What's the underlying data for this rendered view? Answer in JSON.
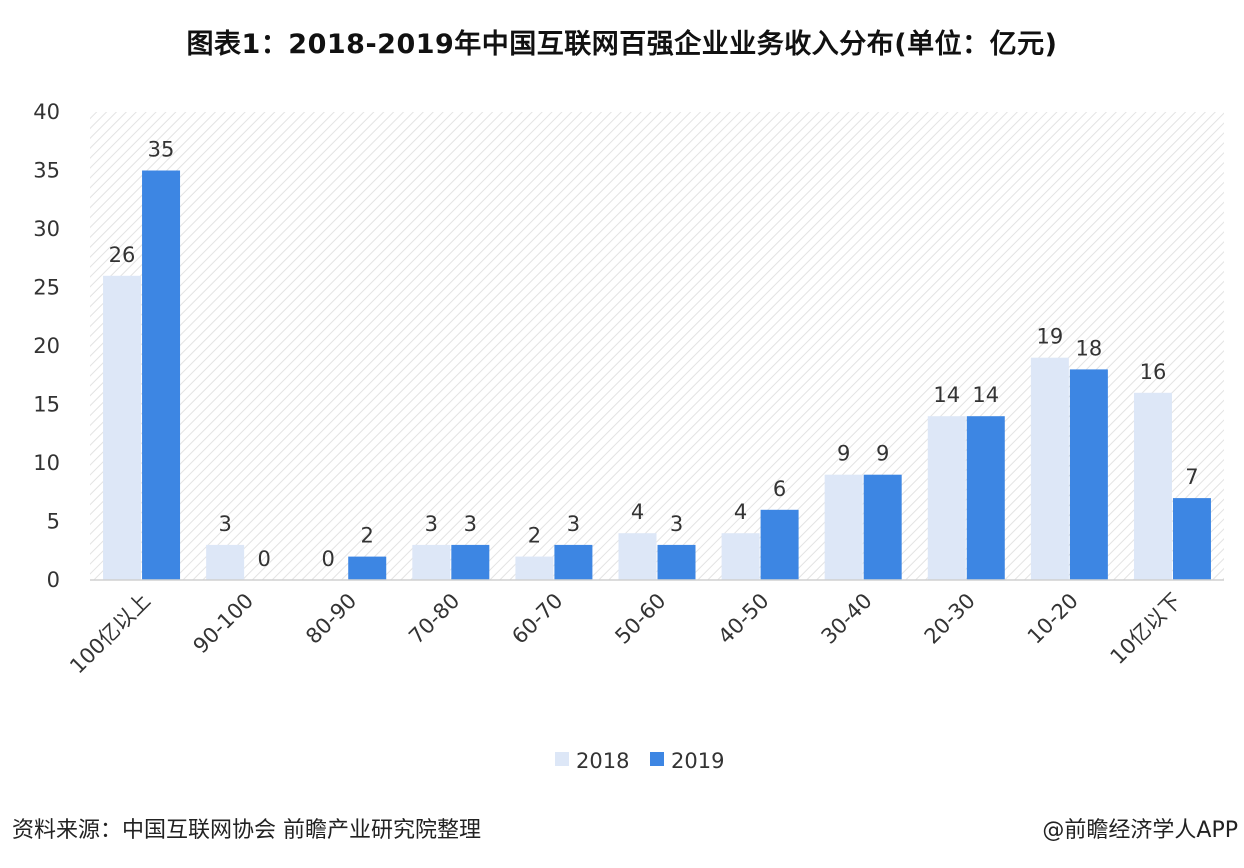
{
  "title": "图表1：2018-2019年中国互联网百强企业业务收入分布(单位：亿元)",
  "source": "资料来源：中国互联网协会 前瞻产业研究院整理",
  "credit": "@前瞻经济学人APP",
  "colors": {
    "series_2018": "#dde7f7",
    "series_2019": "#3d86e3",
    "axis": "#d0d0d0",
    "hatch": "#e3e3e3"
  },
  "chart_data": {
    "type": "bar",
    "title": "图表1：2018-2019年中国互联网百强企业业务收入分布(单位：亿元)",
    "xlabel": "",
    "ylabel": "",
    "ylim": [
      0,
      40
    ],
    "yticks": [
      0,
      5,
      10,
      15,
      20,
      25,
      30,
      35,
      40
    ],
    "grid": false,
    "legend_position": "bottom",
    "categories": [
      "100亿以上",
      "90-100",
      "80-90",
      "70-80",
      "60-70",
      "50-60",
      "40-50",
      "30-40",
      "20-30",
      "10-20",
      "10亿以下"
    ],
    "series": [
      {
        "name": "2018",
        "values": [
          26,
          3,
          0,
          3,
          2,
          4,
          4,
          9,
          14,
          19,
          16
        ]
      },
      {
        "name": "2019",
        "values": [
          35,
          0,
          2,
          3,
          3,
          3,
          6,
          9,
          14,
          18,
          7
        ]
      }
    ]
  }
}
